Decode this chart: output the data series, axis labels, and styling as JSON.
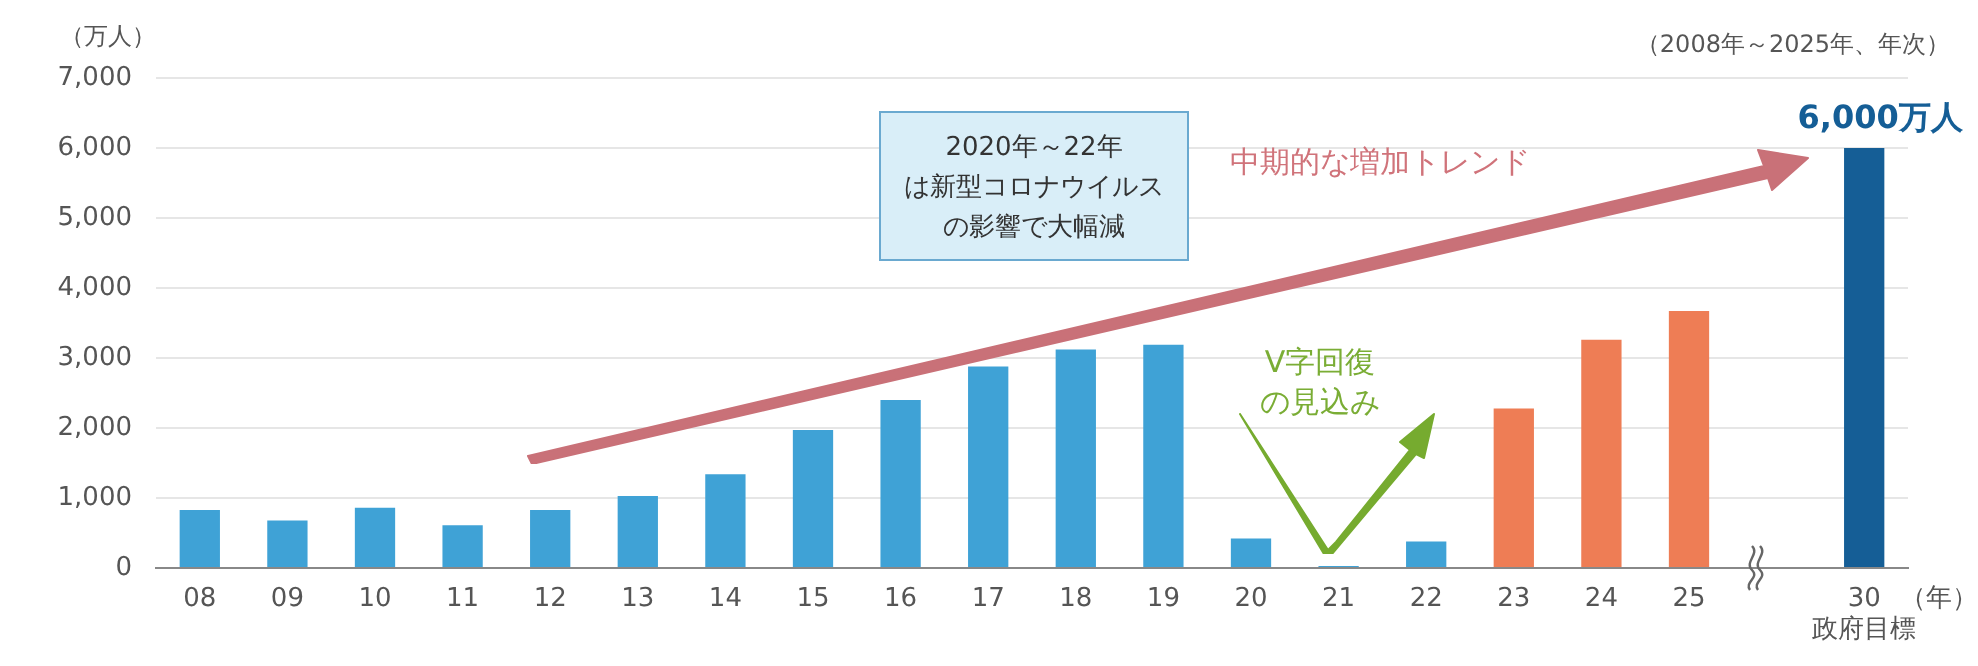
{
  "chart_data": {
    "type": "bar",
    "subtitle": "（2008年～2025年、年次）",
    "ylabel": "（万人）",
    "xlabel": "（年）",
    "categories": [
      "08",
      "09",
      "10",
      "11",
      "12",
      "13",
      "14",
      "15",
      "16",
      "17",
      "18",
      "19",
      "20",
      "21",
      "22",
      "23",
      "24",
      "25",
      null,
      "30"
    ],
    "values": [
      830,
      680,
      860,
      610,
      830,
      1030,
      1340,
      1970,
      2400,
      2880,
      3120,
      3190,
      420,
      30,
      380,
      2280,
      3260,
      3670,
      null,
      6000
    ],
    "colors": [
      "#3fa2d6",
      "#3fa2d6",
      "#3fa2d6",
      "#3fa2d6",
      "#3fa2d6",
      "#3fa2d6",
      "#3fa2d6",
      "#3fa2d6",
      "#3fa2d6",
      "#3fa2d6",
      "#3fa2d6",
      "#3fa2d6",
      "#3fa2d6",
      "#3fa2d6",
      "#3fa2d6",
      "#ee7d55",
      "#ee7d55",
      "#ee7d55",
      "#3fa2d6",
      "#155e96"
    ],
    "value_labels": [
      null,
      null,
      null,
      null,
      null,
      null,
      null,
      null,
      null,
      null,
      null,
      null,
      null,
      null,
      null,
      null,
      null,
      null,
      null,
      "6,000万人"
    ],
    "ylim": [
      0,
      7000
    ],
    "yticks": [
      {
        "value": 0,
        "label": "0"
      },
      {
        "value": 1000,
        "label": "1,000"
      },
      {
        "value": 2000,
        "label": "2,000"
      },
      {
        "value": 3000,
        "label": "3,000"
      },
      {
        "value": 4000,
        "label": "4,000"
      },
      {
        "value": 5000,
        "label": "5,000"
      },
      {
        "value": 6000,
        "label": "6,000"
      },
      {
        "value": 7000,
        "label": "7,000"
      }
    ],
    "grid": "y",
    "legend": false,
    "annotations": [
      "2020年～22年は新型コロナウイルスの影響で大幅減",
      "中期的な増加トレンド",
      "V字回復の見込み",
      "政府目標"
    ]
  }
}
